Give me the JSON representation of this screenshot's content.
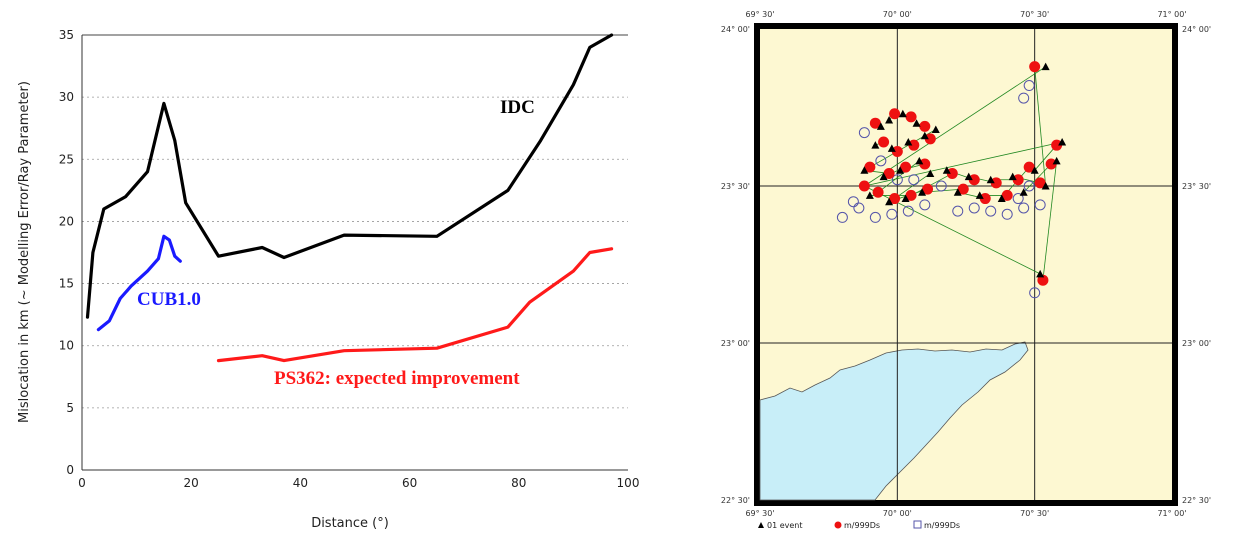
{
  "chart_data": [
    {
      "type": "line",
      "title": "",
      "xlabel": "Distance (°)",
      "ylabel": "Mislocation in km (~ Modelling Error/Ray Parameter)",
      "xlim": [
        0,
        100
      ],
      "ylim": [
        0,
        35
      ],
      "xticks": [
        "0",
        "20",
        "40",
        "60",
        "80",
        "100"
      ],
      "yticks": [
        "0",
        "5",
        "10",
        "15",
        "20",
        "25",
        "30",
        "35"
      ],
      "grid": "horizontal-dotted",
      "series": [
        {
          "name": "IDC",
          "color": "#000000",
          "x": [
            1,
            2,
            4,
            8,
            12,
            15,
            17,
            19,
            25,
            33,
            37,
            48,
            65,
            78,
            84,
            90,
            93,
            97
          ],
          "y": [
            12.3,
            17.5,
            21,
            22,
            24,
            29.5,
            26.5,
            21.5,
            17.2,
            17.9,
            17.1,
            18.9,
            18.8,
            22.5,
            26.5,
            31,
            34,
            35
          ]
        },
        {
          "name": "CUB1.0",
          "color": "#1a1aff",
          "x": [
            3,
            5,
            7,
            9,
            12,
            14,
            15,
            16,
            17,
            18
          ],
          "y": [
            11.3,
            12,
            13.8,
            14.8,
            16,
            17,
            18.8,
            18.5,
            17.2,
            16.8
          ]
        },
        {
          "name": "PS362: expected improvement",
          "color": "#ff1a1a",
          "x": [
            25,
            33,
            37,
            48,
            65,
            78,
            82,
            90,
            93,
            97
          ],
          "y": [
            8.8,
            9.2,
            8.8,
            9.6,
            9.8,
            11.5,
            13.5,
            16,
            17.5,
            17.8
          ]
        }
      ]
    },
    {
      "type": "scatter",
      "title": "",
      "xticks": [
        "69° 30'",
        "70° 00'",
        "70° 30'",
        "71° 00'"
      ],
      "yticks": [
        "24° 00'",
        "23° 30'",
        "23° 00'",
        "22° 30'"
      ],
      "xlim": [
        69.5,
        71.0
      ],
      "ylim": [
        22.5,
        24.0
      ],
      "legend": [
        "01 event",
        "m/999Ds",
        "m/999Ds"
      ],
      "colors": {
        "land": "#fdf8d2",
        "sea": "#c8eef8",
        "event": "#000000",
        "relocated": "#ee1111",
        "open": "#5555aa"
      },
      "events": [
        [
          69.94,
          23.69
        ],
        [
          69.97,
          23.71
        ],
        [
          70.02,
          23.73
        ],
        [
          70.07,
          23.7
        ],
        [
          69.92,
          23.63
        ],
        [
          69.98,
          23.62
        ],
        [
          70.04,
          23.64
        ],
        [
          70.1,
          23.66
        ],
        [
          70.14,
          23.68
        ],
        [
          69.88,
          23.55
        ],
        [
          69.95,
          23.53
        ],
        [
          70.01,
          23.55
        ],
        [
          70.08,
          23.58
        ],
        [
          70.12,
          23.54
        ],
        [
          69.9,
          23.47
        ],
        [
          69.97,
          23.45
        ],
        [
          70.03,
          23.46
        ],
        [
          70.09,
          23.48
        ],
        [
          70.18,
          23.55
        ],
        [
          70.22,
          23.48
        ],
        [
          70.26,
          23.53
        ],
        [
          70.3,
          23.47
        ],
        [
          70.34,
          23.52
        ],
        [
          70.38,
          23.46
        ],
        [
          70.42,
          23.53
        ],
        [
          70.46,
          23.48
        ],
        [
          70.5,
          23.55
        ],
        [
          70.54,
          23.5
        ],
        [
          70.58,
          23.58
        ],
        [
          70.6,
          23.64
        ],
        [
          70.54,
          23.88
        ],
        [
          70.52,
          23.22
        ]
      ],
      "relocated": [
        [
          69.92,
          23.7
        ],
        [
          69.99,
          23.73
        ],
        [
          70.05,
          23.72
        ],
        [
          70.1,
          23.69
        ],
        [
          69.95,
          23.64
        ],
        [
          70.0,
          23.61
        ],
        [
          70.06,
          23.63
        ],
        [
          70.12,
          23.65
        ],
        [
          69.9,
          23.56
        ],
        [
          69.97,
          23.54
        ],
        [
          70.03,
          23.56
        ],
        [
          70.1,
          23.57
        ],
        [
          69.93,
          23.48
        ],
        [
          69.99,
          23.46
        ],
        [
          70.05,
          23.47
        ],
        [
          70.11,
          23.49
        ],
        [
          70.2,
          23.54
        ],
        [
          70.24,
          23.49
        ],
        [
          70.28,
          23.52
        ],
        [
          70.32,
          23.46
        ],
        [
          70.36,
          23.51
        ],
        [
          70.4,
          23.47
        ],
        [
          70.44,
          23.52
        ],
        [
          70.48,
          23.56
        ],
        [
          70.52,
          23.51
        ],
        [
          70.56,
          23.57
        ],
        [
          70.58,
          23.63
        ],
        [
          70.5,
          23.88
        ],
        [
          70.53,
          23.2
        ],
        [
          69.88,
          23.5
        ]
      ],
      "open": [
        [
          69.88,
          23.67
        ],
        [
          69.94,
          23.58
        ],
        [
          70.0,
          23.52
        ],
        [
          70.06,
          23.52
        ],
        [
          69.86,
          23.43
        ],
        [
          69.92,
          23.4
        ],
        [
          69.98,
          23.41
        ],
        [
          70.04,
          23.42
        ],
        [
          70.1,
          23.44
        ],
        [
          70.16,
          23.5
        ],
        [
          70.22,
          23.42
        ],
        [
          70.28,
          23.43
        ],
        [
          70.34,
          23.42
        ],
        [
          70.4,
          23.41
        ],
        [
          70.46,
          23.43
        ],
        [
          70.52,
          23.44
        ],
        [
          70.48,
          23.5
        ],
        [
          70.44,
          23.46
        ],
        [
          70.48,
          23.82
        ],
        [
          70.46,
          23.78
        ],
        [
          70.5,
          23.16
        ],
        [
          69.84,
          23.45
        ],
        [
          69.8,
          23.4
        ]
      ]
    }
  ]
}
